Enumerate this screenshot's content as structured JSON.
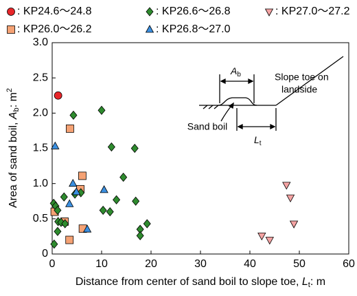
{
  "chart_data": {
    "type": "scatter",
    "x_label": [
      "Distance from center of sand boil to slope toe, ",
      "L",
      "t",
      ": m"
    ],
    "y_label": [
      "Area of sand boil, ",
      "A",
      "b",
      ": m",
      "2"
    ],
    "xlim": [
      0,
      60
    ],
    "ylim": [
      0,
      3
    ],
    "xticks": [
      0,
      10,
      20,
      30,
      40,
      50,
      60
    ],
    "yticks": [
      0,
      {
        "value": 0.5,
        "label": "0.5"
      },
      {
        "value": 1,
        "label": "1.0"
      },
      {
        "value": 1.5,
        "label": "1.5"
      },
      {
        "value": 2,
        "label": "2.0"
      },
      {
        "value": 2.5,
        "label": "2.5"
      },
      {
        "value": 3,
        "label": "3.0"
      }
    ],
    "grid": false,
    "series": [
      {
        "name": ": KP24.6～24.8",
        "marker": "circle",
        "color": "#e8262a",
        "x": [
          1.2
        ],
        "y": [
          2.25
        ]
      },
      {
        "name": ": KP26.0～26.2",
        "marker": "square",
        "color": "#f5a274",
        "x": [
          0.5,
          2.5,
          3.5,
          3.6,
          6.1,
          5.7,
          6.2
        ],
        "y": [
          0.6,
          0.46,
          0.2,
          1.78,
          1.11,
          0.92,
          0.36
        ]
      },
      {
        "name": ": KP26.6～26.8",
        "marker": "diamond",
        "color": "#2e8b2e",
        "x": [
          0.4,
          0.3,
          0.7,
          1.1,
          1.2,
          1.1,
          1.8,
          2.4,
          2.6,
          4.3,
          4.6,
          5.8,
          10,
          12,
          10.3,
          11.7,
          13,
          14.4,
          16.7,
          16.9,
          17.8,
          17.8,
          19.2
        ],
        "y": [
          0.14,
          0.72,
          0.68,
          0.62,
          0.46,
          0.32,
          0.45,
          0.81,
          0.43,
          1.97,
          0.85,
          0.87,
          2.04,
          1.52,
          0.62,
          0.6,
          0.77,
          1.09,
          1.5,
          0.75,
          0.35,
          0.26,
          0.43
        ]
      },
      {
        "name": ": KP26.8～27.0",
        "marker": "triangle",
        "color": "#3b8fe0",
        "x": [
          0.6,
          4.2,
          3.5,
          4.9,
          10.5,
          7.1
        ],
        "y": [
          1.53,
          1.0,
          0.71,
          0.88,
          0.91,
          0.35
        ]
      },
      {
        "name": ": KP27.0～27.2",
        "marker": "triangle-down",
        "color": "#f4a3a3",
        "x": [
          47.4,
          48.2,
          48.9,
          42.4,
          44
        ],
        "y": [
          0.98,
          0.8,
          0.43,
          0.26,
          0.2
        ]
      }
    ],
    "annotations": {
      "slope_toe": [
        "Slope toe on",
        "landside"
      ],
      "sand_boil": "Sand boil",
      "ab": [
        "A",
        "b"
      ],
      "lt": [
        "L",
        "t"
      ]
    }
  }
}
